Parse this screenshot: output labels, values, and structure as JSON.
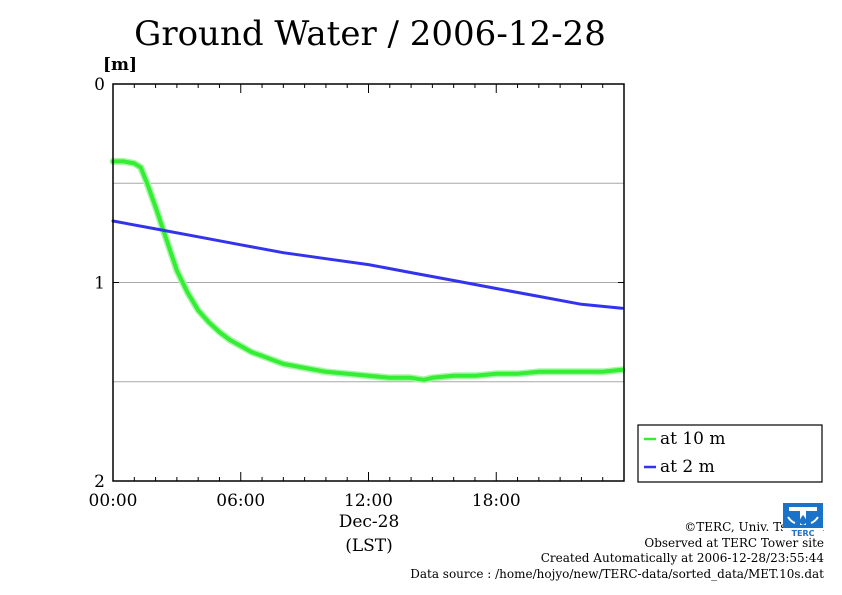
{
  "title": "Ground Water / 2006-12-28",
  "colors": {
    "green": "#33ee33",
    "green_dark": "#22cc22",
    "blue": "#3333ee"
  },
  "chart_data": {
    "type": "line",
    "title": "Ground Water / 2006-12-28",
    "ylabel": "[m]",
    "xlabel_date": "Dec-28",
    "xlabel_unit": "(LST)",
    "x_ticks": [
      "00:00",
      "06:00",
      "12:00",
      "18:00"
    ],
    "x_tick_hours": [
      0,
      6,
      12,
      18
    ],
    "xlim_hours": [
      0,
      24
    ],
    "y_ticks": [
      "0",
      "1",
      "2"
    ],
    "y_tick_values": [
      0,
      1,
      2
    ],
    "ylim": [
      0,
      2
    ],
    "y_inverted": true,
    "y_grid": [
      0.5,
      1.0,
      1.5
    ],
    "legend_placement": "right",
    "series": [
      {
        "name": "at 10 m",
        "color": "#33ee33",
        "x_hours": [
          0,
          0.5,
          1.0,
          1.3,
          1.6,
          2.0,
          2.5,
          3.0,
          3.5,
          4.0,
          4.5,
          5.0,
          5.5,
          6.0,
          6.5,
          7.0,
          8.0,
          9.0,
          10.0,
          11.0,
          12.0,
          13.0,
          14.0,
          14.6,
          15.0,
          16.0,
          17.0,
          18.0,
          19.0,
          20.0,
          21.0,
          22.0,
          23.0,
          23.9
        ],
        "values": [
          0.39,
          0.39,
          0.4,
          0.42,
          0.5,
          0.62,
          0.78,
          0.94,
          1.05,
          1.14,
          1.2,
          1.25,
          1.29,
          1.32,
          1.35,
          1.37,
          1.41,
          1.43,
          1.45,
          1.46,
          1.47,
          1.48,
          1.48,
          1.49,
          1.48,
          1.47,
          1.47,
          1.46,
          1.46,
          1.45,
          1.45,
          1.45,
          1.45,
          1.44
        ]
      },
      {
        "name": "at 2 m",
        "color": "#3333ee",
        "x_hours": [
          0,
          2,
          4,
          6,
          8,
          10,
          12,
          14,
          16,
          18,
          20,
          22,
          23.9
        ],
        "values": [
          0.69,
          0.73,
          0.77,
          0.81,
          0.85,
          0.88,
          0.91,
          0.95,
          0.99,
          1.03,
          1.07,
          1.11,
          1.13
        ]
      }
    ]
  },
  "footer": {
    "copyright": "©TERC, Univ. Tsukuba",
    "observed": "Observed at TERC Tower site",
    "created": "Created Automatically at 2006-12-28/23:55:44",
    "source": "Data source : /home/hojyo/new/TERC-data/sorted_data/MET.10s.dat"
  },
  "logo": {
    "text": "TERC"
  }
}
